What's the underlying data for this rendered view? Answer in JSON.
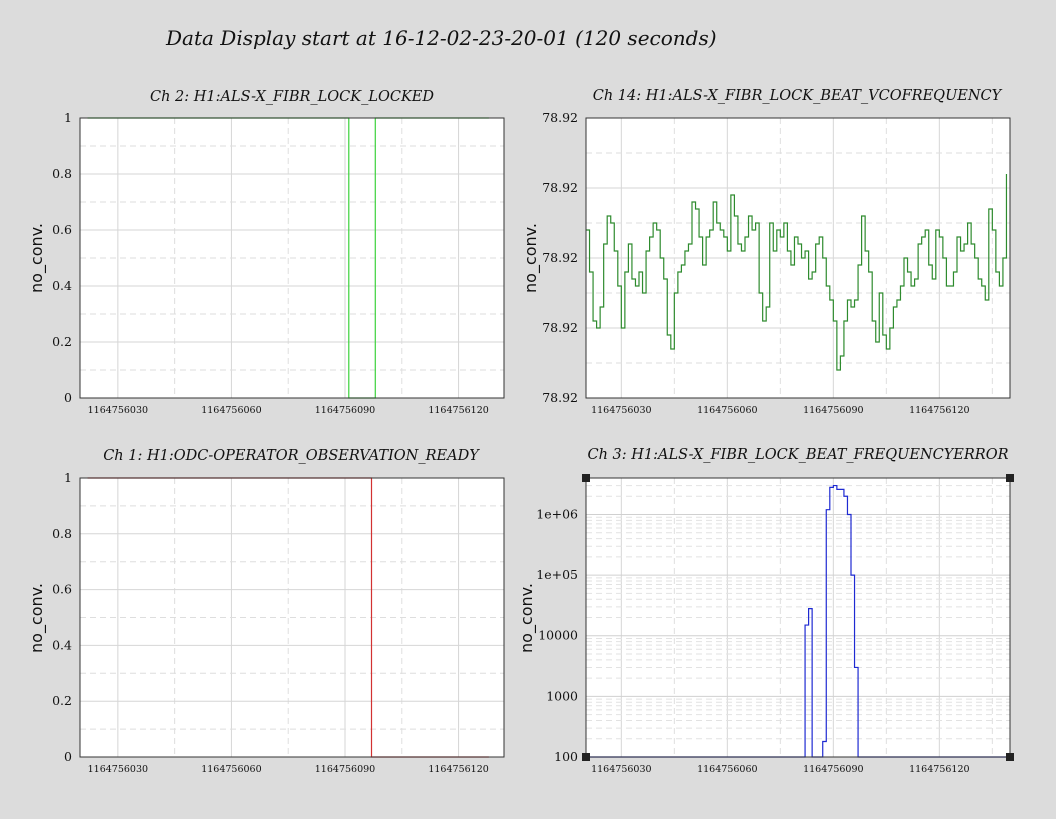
{
  "title": "Data Display start at 16-12-02-23-20-01 (120 seconds)",
  "chart_data": [
    {
      "type": "line",
      "title": "Ch 2: H1:ALS-X_FIBR_LOCK_LOCKED",
      "ylabel": "no_conv.",
      "color": "#3cd23c",
      "xlim": [
        1164756020,
        1164756132
      ],
      "ylim": [
        0,
        1
      ],
      "x_ticks": [
        1164756030,
        1164756060,
        1164756090,
        1164756120
      ],
      "x_tick_labels": [
        "1164756030",
        "1164756060",
        "1164756090",
        "1164756120"
      ],
      "y_ticks": [
        0,
        0.2,
        0.4,
        0.6,
        0.8,
        1
      ],
      "y_tick_labels": [
        "0",
        "0.2",
        "0.4",
        "0.6",
        "0.8",
        "1"
      ],
      "log_y": false,
      "grid": true,
      "step": true,
      "x": [
        1164756022,
        1164756091,
        1164756091,
        1164756098,
        1164756098,
        1164756128
      ],
      "y": [
        1,
        1,
        0,
        0,
        1,
        1
      ]
    },
    {
      "type": "line",
      "title": "Ch 14: H1:ALS-X_FIBR_LOCK_BEAT_VCOFREQUENCY",
      "ylabel": "no_conv.",
      "color": "#2e8b2e",
      "xlim": [
        1164756020,
        1164756140
      ],
      "ylim": [
        0,
        4
      ],
      "x_ticks": [
        1164756030,
        1164756060,
        1164756090,
        1164756120
      ],
      "x_tick_labels": [
        "1164756030",
        "1164756060",
        "1164756090",
        "1164756120"
      ],
      "y_ticks": [
        0,
        1,
        2,
        3,
        4
      ],
      "y_tick_labels": [
        "78.92",
        "78.92",
        "78.92",
        "78.92",
        "78.92"
      ],
      "log_y": false,
      "grid": true,
      "step": true,
      "x": [
        1164756020,
        1164756021,
        1164756022,
        1164756023,
        1164756024,
        1164756025,
        1164756026,
        1164756027,
        1164756028,
        1164756029,
        1164756030,
        1164756031,
        1164756032,
        1164756033,
        1164756034,
        1164756035,
        1164756036,
        1164756037,
        1164756038,
        1164756039,
        1164756040,
        1164756041,
        1164756042,
        1164756043,
        1164756044,
        1164756045,
        1164756046,
        1164756047,
        1164756048,
        1164756049,
        1164756050,
        1164756051,
        1164756052,
        1164756053,
        1164756054,
        1164756055,
        1164756056,
        1164756057,
        1164756058,
        1164756059,
        1164756060,
        1164756061,
        1164756062,
        1164756063,
        1164756064,
        1164756065,
        1164756066,
        1164756067,
        1164756068,
        1164756069,
        1164756070,
        1164756071,
        1164756072,
        1164756073,
        1164756074,
        1164756075,
        1164756076,
        1164756077,
        1164756078,
        1164756079,
        1164756080,
        1164756081,
        1164756082,
        1164756083,
        1164756084,
        1164756085,
        1164756086,
        1164756087,
        1164756088,
        1164756089,
        1164756090,
        1164756091,
        1164756092,
        1164756093,
        1164756094,
        1164756095,
        1164756096,
        1164756097,
        1164756098,
        1164756099,
        1164756100,
        1164756101,
        1164756102,
        1164756103,
        1164756104,
        1164756105,
        1164756106,
        1164756107,
        1164756108,
        1164756109,
        1164756110,
        1164756111,
        1164756112,
        1164756113,
        1164756114,
        1164756115,
        1164756116,
        1164756117,
        1164756118,
        1164756119,
        1164756120,
        1164756121,
        1164756122,
        1164756123,
        1164756124,
        1164756125,
        1164756126,
        1164756127,
        1164756128,
        1164756129,
        1164756130,
        1164756131,
        1164756132,
        1164756133,
        1164756134,
        1164756135,
        1164756136,
        1164756137,
        1164756138,
        1164756139
      ],
      "y": [
        2.4,
        1.8,
        1.1,
        1.0,
        1.3,
        2.2,
        2.6,
        2.5,
        2.1,
        1.6,
        1.0,
        1.8,
        2.2,
        1.7,
        1.6,
        1.8,
        1.5,
        2.1,
        2.3,
        2.5,
        2.4,
        2.0,
        1.7,
        0.9,
        0.7,
        1.5,
        1.8,
        1.9,
        2.1,
        2.2,
        2.8,
        2.7,
        2.3,
        1.9,
        2.3,
        2.4,
        2.8,
        2.5,
        2.4,
        2.3,
        2.1,
        2.9,
        2.6,
        2.2,
        2.1,
        2.3,
        2.6,
        2.4,
        2.5,
        1.5,
        1.1,
        1.3,
        2.5,
        2.1,
        2.4,
        2.3,
        2.5,
        2.1,
        1.9,
        2.3,
        2.2,
        2.0,
        2.1,
        1.7,
        1.8,
        2.2,
        2.3,
        2.0,
        1.6,
        1.4,
        1.1,
        0.4,
        0.6,
        1.1,
        1.4,
        1.3,
        1.4,
        1.9,
        2.6,
        2.1,
        1.8,
        1.1,
        0.8,
        1.5,
        0.9,
        0.7,
        1.0,
        1.3,
        1.4,
        1.6,
        2.0,
        1.8,
        1.6,
        1.7,
        2.2,
        2.3,
        2.4,
        1.9,
        1.7,
        2.4,
        2.3,
        2.0,
        1.6,
        1.6,
        1.8,
        2.3,
        2.1,
        2.2,
        2.5,
        2.2,
        2.0,
        1.7,
        1.6,
        1.4,
        2.7,
        2.4,
        1.8,
        1.6,
        2.0,
        3.2
      ],
      "y_note": "relative positions within the labeled 78.92 band"
    },
    {
      "type": "line",
      "title": "Ch 1: H1:ODC-OPERATOR_OBSERVATION_READY",
      "ylabel": "no_conv.",
      "color": "#d23232",
      "xlim": [
        1164756020,
        1164756132
      ],
      "ylim": [
        0,
        1
      ],
      "x_ticks": [
        1164756030,
        1164756060,
        1164756090,
        1164756120
      ],
      "x_tick_labels": [
        "1164756030",
        "1164756060",
        "1164756090",
        "1164756120"
      ],
      "y_ticks": [
        0,
        0.2,
        0.4,
        0.6,
        0.8,
        1
      ],
      "y_tick_labels": [
        "0",
        "0.2",
        "0.4",
        "0.6",
        "0.8",
        "1"
      ],
      "log_y": false,
      "grid": true,
      "step": true,
      "x": [
        1164756022,
        1164756097,
        1164756097,
        1164756128
      ],
      "y": [
        1,
        1,
        0,
        0
      ]
    },
    {
      "type": "line",
      "title": "Ch 3: H1:ALS-X_FIBR_LOCK_BEAT_FREQUENCYERROR",
      "ylabel": "no_conv.",
      "color": "#1e2ad2",
      "xlim": [
        1164756020,
        1164756140
      ],
      "ylim": [
        100,
        4000000
      ],
      "x_ticks": [
        1164756030,
        1164756060,
        1164756090,
        1164756120
      ],
      "x_tick_labels": [
        "1164756030",
        "1164756060",
        "1164756090",
        "1164756120"
      ],
      "y_ticks": [
        100,
        1000,
        10000,
        100000,
        1000000
      ],
      "y_tick_labels": [
        "100",
        "1000",
        "10000",
        "1e+05",
        "1e+06"
      ],
      "log_y": true,
      "grid": true,
      "step": true,
      "x": [
        1164756020,
        1164756081,
        1164756082,
        1164756083,
        1164756084,
        1164756085,
        1164756087,
        1164756088,
        1164756089,
        1164756090,
        1164756091,
        1164756093,
        1164756094,
        1164756095,
        1164756096,
        1164756097,
        1164756098,
        1164756140
      ],
      "y": [
        100,
        100,
        15000,
        28000,
        100,
        100,
        180,
        1200000,
        2800000,
        3000000,
        2600000,
        2000000,
        1000000,
        100000,
        3000,
        100,
        100,
        100
      ]
    }
  ]
}
